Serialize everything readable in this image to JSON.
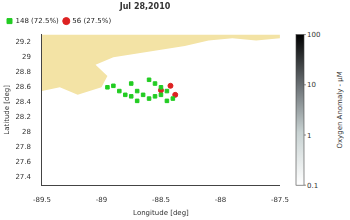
{
  "chart_data": {
    "type": "scatter",
    "title": "Jul 28,2010",
    "x_label": "Longitude [deg]",
    "y_label": "Latitude [deg]",
    "xlim": [
      -89.5,
      -87.5
    ],
    "xticks": [
      -89.5,
      -89,
      -88.5,
      -88,
      -87.5
    ],
    "ylim": [
      27.3,
      29.3
    ],
    "yticks": [
      27.4,
      27.6,
      27.8,
      28,
      28.2,
      28.4,
      28.6,
      28.8,
      29,
      29.2
    ],
    "grid": false,
    "legend": "upper left",
    "series": [
      {
        "name": "148 (72.5%)",
        "color": "#22cc22",
        "marker": "square",
        "values": [
          [
            -88.95,
            28.6
          ],
          [
            -88.9,
            28.62
          ],
          [
            -88.85,
            28.55
          ],
          [
            -88.8,
            28.5
          ],
          [
            -88.75,
            28.48
          ],
          [
            -88.7,
            28.55
          ],
          [
            -88.65,
            28.5
          ],
          [
            -88.6,
            28.45
          ],
          [
            -88.55,
            28.48
          ],
          [
            -88.5,
            28.5
          ],
          [
            -88.45,
            28.42
          ],
          [
            -88.4,
            28.45
          ],
          [
            -88.75,
            28.65
          ],
          [
            -88.6,
            28.7
          ],
          [
            -88.5,
            28.6
          ],
          [
            -88.45,
            28.55
          ],
          [
            -88.7,
            28.42
          ],
          [
            -88.55,
            28.65
          ]
        ]
      },
      {
        "name": "56 (27.5%)",
        "color": "#dd2222",
        "marker": "circle",
        "values": [
          [
            -88.42,
            28.62
          ],
          [
            -88.5,
            28.56
          ],
          [
            -88.38,
            28.5
          ]
        ]
      }
    ],
    "land": {
      "color": "#f3e3a5",
      "x": [
        -89.5,
        -89.5,
        -89.35,
        -89.2,
        -89.1,
        -89.0,
        -88.95,
        -89.05,
        -88.9,
        -88.7,
        -88.5,
        -88.3,
        -88.1,
        -87.9,
        -87.7,
        -87.5,
        -87.5
      ],
      "y": [
        29.3,
        28.55,
        28.6,
        28.5,
        28.55,
        28.6,
        28.75,
        28.9,
        29.0,
        29.05,
        29.1,
        29.15,
        29.22,
        29.25,
        29.22,
        29.25,
        29.3
      ]
    },
    "color_bar": {
      "label": "Oxygen Anomaly - μM",
      "range": [
        0.1,
        100
      ],
      "ticks": [
        0.1,
        1,
        10,
        100
      ],
      "log": true
    }
  }
}
